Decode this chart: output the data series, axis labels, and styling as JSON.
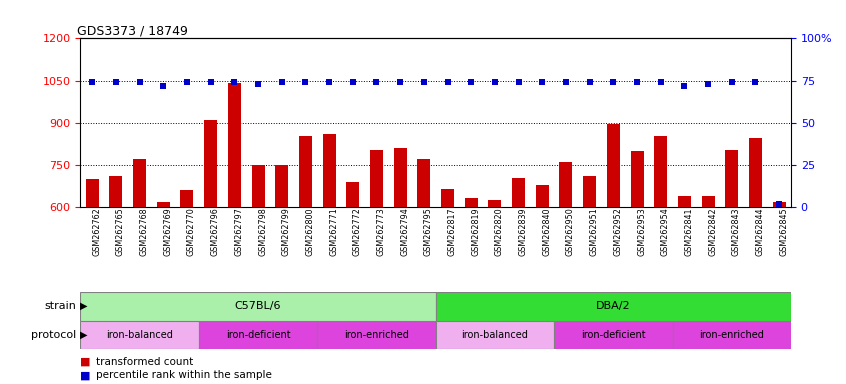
{
  "title": "GDS3373 / 18749",
  "samples": [
    "GSM262762",
    "GSM262765",
    "GSM262768",
    "GSM262769",
    "GSM262770",
    "GSM262796",
    "GSM262797",
    "GSM262798",
    "GSM262799",
    "GSM262800",
    "GSM262771",
    "GSM262772",
    "GSM262773",
    "GSM262794",
    "GSM262795",
    "GSM262817",
    "GSM262819",
    "GSM262820",
    "GSM262839",
    "GSM262840",
    "GSM262950",
    "GSM262951",
    "GSM262952",
    "GSM262953",
    "GSM262954",
    "GSM262841",
    "GSM262842",
    "GSM262843",
    "GSM262844",
    "GSM262845"
  ],
  "transformed_count": [
    700,
    710,
    770,
    620,
    660,
    910,
    1040,
    750,
    750,
    855,
    860,
    690,
    805,
    810,
    770,
    665,
    635,
    625,
    705,
    680,
    760,
    710,
    895,
    800,
    855,
    640,
    640,
    805,
    845,
    620
  ],
  "percentile_rank": [
    74,
    74,
    74,
    72,
    74,
    74,
    74,
    73,
    74,
    74,
    74,
    74,
    74,
    74,
    74,
    74,
    74,
    74,
    74,
    74,
    74,
    74,
    74,
    74,
    74,
    72,
    73,
    74,
    74,
    2
  ],
  "bar_color": "#cc0000",
  "dot_color": "#0000cc",
  "ylim_left": [
    600,
    1200
  ],
  "ylim_right": [
    0,
    100
  ],
  "yticks_left": [
    600,
    750,
    900,
    1050,
    1200
  ],
  "yticks_right": [
    0,
    25,
    50,
    75,
    100
  ],
  "strain_groups": [
    {
      "label": "C57BL/6",
      "start": 0,
      "end": 15,
      "color": "#aaf0aa"
    },
    {
      "label": "DBA/2",
      "start": 15,
      "end": 30,
      "color": "#33dd33"
    }
  ],
  "protocol_groups": [
    {
      "label": "iron-balanced",
      "start": 0,
      "end": 5,
      "color": "#f0b0f0"
    },
    {
      "label": "iron-deficient",
      "start": 5,
      "end": 10,
      "color": "#dd44dd"
    },
    {
      "label": "iron-enriched",
      "start": 10,
      "end": 15,
      "color": "#dd44dd"
    },
    {
      "label": "iron-balanced",
      "start": 15,
      "end": 20,
      "color": "#f0b0f0"
    },
    {
      "label": "iron-deficient",
      "start": 20,
      "end": 25,
      "color": "#dd44dd"
    },
    {
      "label": "iron-enriched",
      "start": 25,
      "end": 30,
      "color": "#dd44dd"
    }
  ]
}
